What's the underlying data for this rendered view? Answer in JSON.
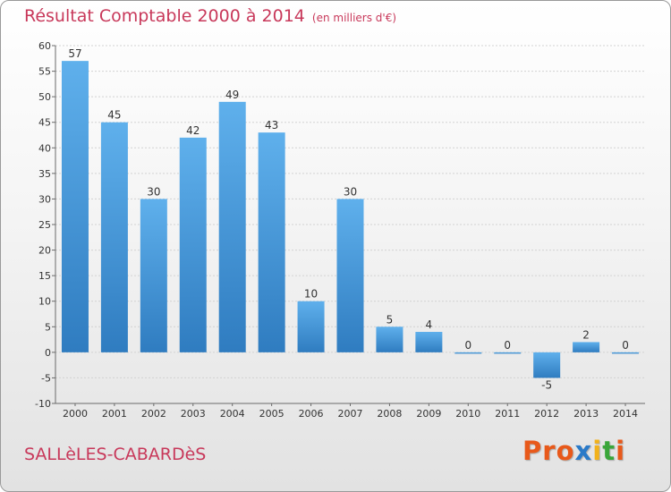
{
  "title": "Résultat Comptable 2000 à 2014",
  "subtitle": "(en milliers d'€)",
  "commune": "SALLèLES-CABARDèS",
  "brand": {
    "text": "Proxiti",
    "letters": [
      "P",
      "r",
      "o",
      "x",
      "i",
      "t",
      "i"
    ],
    "colors": [
      "#e8591a",
      "#e8591a",
      "#e8591a",
      "#2a7ac8",
      "#f2b21b",
      "#3aa63a",
      "#e8591a"
    ]
  },
  "colors": {
    "title": "#c8385a",
    "bar_light": "#5fb0ec",
    "bar_dark": "#2f7cc0",
    "grid": "#d2d2d2",
    "axis": "#6a6a6a",
    "text": "#333333"
  },
  "chart_data": {
    "type": "bar",
    "title": "Résultat Comptable 2000 à 2014",
    "subtitle": "(en milliers d'€)",
    "xlabel": "",
    "ylabel": "",
    "categories": [
      "2000",
      "2001",
      "2002",
      "2003",
      "2004",
      "2005",
      "2006",
      "2007",
      "2008",
      "2009",
      "2010",
      "2011",
      "2012",
      "2013",
      "2014"
    ],
    "values": [
      57,
      45,
      30,
      42,
      49,
      43,
      10,
      30,
      5,
      4,
      0,
      0,
      -5,
      2,
      0
    ],
    "value_labels": [
      "57",
      "45",
      "30",
      "42",
      "49",
      "43",
      "10",
      "30",
      "5",
      "4",
      "0",
      "0",
      "-5",
      "2",
      "0"
    ],
    "ylim": [
      -10,
      60
    ],
    "yticks": [
      -10,
      -5,
      0,
      5,
      10,
      15,
      20,
      25,
      30,
      35,
      40,
      45,
      50,
      55,
      60
    ],
    "ytick_labels": [
      "-10",
      "-5",
      "0",
      "5",
      "10",
      "15",
      "20",
      "25",
      "30",
      "35",
      "40",
      "45",
      "50",
      "55",
      "60"
    ],
    "grid": true
  }
}
